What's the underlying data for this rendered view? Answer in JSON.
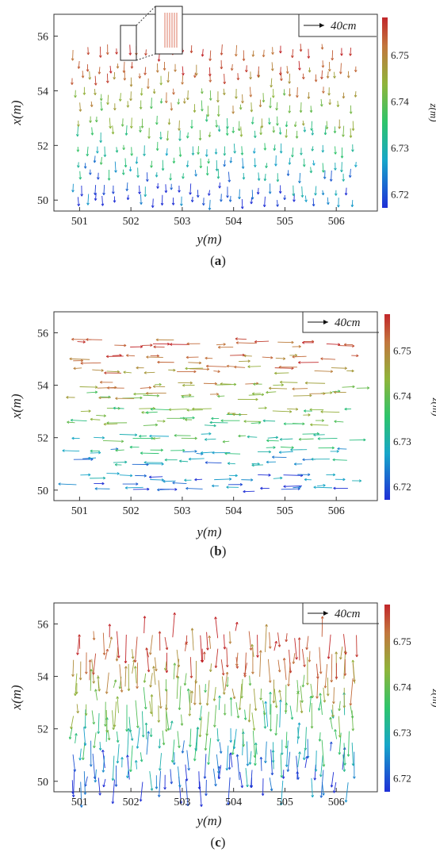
{
  "figure": {
    "legend_text": "40cm",
    "colorbar_label": "z(m)",
    "colorbar_ticks": [
      "6.75",
      "6.74",
      "6.73",
      "6.72"
    ],
    "colormap": [
      "#1f2fd6",
      "#17a6c9",
      "#2ec46a",
      "#8fb43a",
      "#c2763d",
      "#c2272b"
    ]
  },
  "chart_data": [
    {
      "panel": "(a)",
      "type": "scatter",
      "subtype": "vector-field",
      "direction": "x-dominant",
      "xlabel": "y(m)",
      "ylabel": "x(m)",
      "xticks": [
        "501",
        "502",
        "503",
        "504",
        "505",
        "506"
      ],
      "yticks": [
        "56",
        "54",
        "52",
        "50"
      ],
      "xlim": [
        500.5,
        506.8
      ],
      "ylim": [
        49.6,
        56.8
      ],
      "zlim": [
        6.717,
        6.758
      ],
      "has_inset_zoom": true
    },
    {
      "panel": "(b)",
      "type": "scatter",
      "subtype": "vector-field",
      "direction": "y-dominant",
      "xlabel": "y(m)",
      "ylabel": "x(m)",
      "xticks": [
        "501",
        "502",
        "503",
        "504",
        "505",
        "506"
      ],
      "yticks": [
        "56",
        "54",
        "52",
        "50"
      ],
      "xlim": [
        500.5,
        506.8
      ],
      "ylim": [
        49.6,
        56.8
      ],
      "zlim": [
        6.717,
        6.758
      ],
      "has_inset_zoom": false
    },
    {
      "panel": "(c)",
      "type": "scatter",
      "subtype": "vector-field",
      "direction": "x-dominant long arrows",
      "xlabel": "y(m)",
      "ylabel": "x(m)",
      "xticks": [
        "501",
        "502",
        "503",
        "504",
        "505",
        "506"
      ],
      "yticks": [
        "56",
        "54",
        "52",
        "50"
      ],
      "xlim": [
        500.5,
        506.8
      ],
      "ylim": [
        49.6,
        56.8
      ],
      "zlim": [
        6.717,
        6.758
      ],
      "has_inset_zoom": false
    }
  ]
}
